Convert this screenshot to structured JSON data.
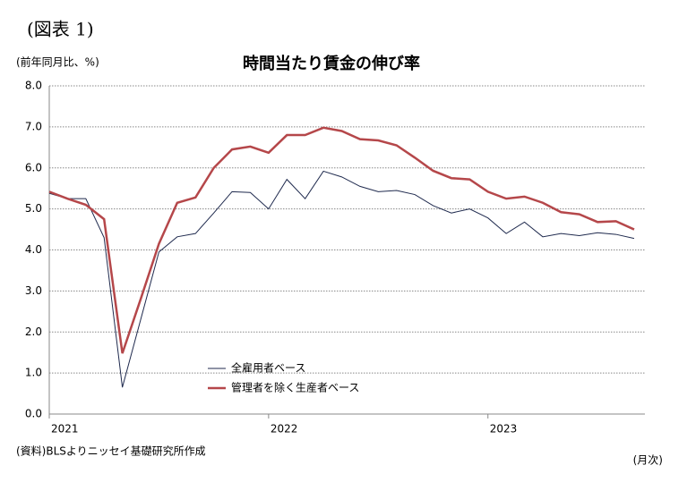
{
  "chart_data": {
    "type": "line",
    "header": "(図表 1)",
    "title": "時間当たり賃金の伸び率",
    "y_label": "(前年同月比、%)",
    "x_label": "(月次)",
    "source": "(資料)BLSよりニッセイ基礎研究所作成",
    "categories": [
      "2021",
      null,
      null,
      null,
      null,
      null,
      null,
      null,
      null,
      null,
      null,
      null,
      "2022",
      null,
      null,
      null,
      null,
      null,
      null,
      null,
      null,
      null,
      null,
      null,
      "2023",
      null,
      null,
      null,
      null,
      null,
      null,
      null,
      null
    ],
    "series": [
      {
        "name": "全雇用者ベース",
        "color": "#1f2a4e",
        "width": 1,
        "values": [
          5.38,
          5.25,
          5.25,
          4.3,
          0.65,
          2.3,
          3.95,
          4.32,
          4.4,
          4.9,
          5.42,
          5.4,
          5.0,
          5.72,
          5.25,
          5.92,
          5.78,
          5.55,
          5.42,
          5.45,
          5.35,
          5.08,
          4.9,
          5.0,
          4.78,
          4.4,
          4.68,
          4.32,
          4.4,
          4.35,
          4.42,
          4.38,
          4.28
        ]
      },
      {
        "name": "管理者を除く生産者ベース",
        "color": "#b5474a",
        "width": 2.5,
        "values": [
          5.42,
          5.25,
          5.1,
          4.75,
          1.48,
          2.8,
          4.15,
          5.15,
          5.28,
          6.0,
          6.45,
          6.52,
          6.37,
          6.8,
          6.8,
          6.98,
          6.9,
          6.7,
          6.67,
          6.55,
          6.25,
          5.93,
          5.75,
          5.72,
          5.42,
          5.25,
          5.3,
          5.15,
          4.92,
          4.87,
          4.68,
          4.7,
          4.5
        ]
      }
    ],
    "ylim": [
      0,
      8
    ],
    "yticks": [
      {
        "value": 0,
        "label": "0.0"
      },
      {
        "value": 1,
        "label": "1.0"
      },
      {
        "value": 2,
        "label": "2.0"
      },
      {
        "value": 3,
        "label": "3.0"
      },
      {
        "value": 4,
        "label": "4.0"
      },
      {
        "value": 5,
        "label": "5.0"
      },
      {
        "value": 6,
        "label": "6.0"
      },
      {
        "value": 7,
        "label": "7.0"
      },
      {
        "value": 8,
        "label": "8.0"
      }
    ],
    "grid": true
  }
}
